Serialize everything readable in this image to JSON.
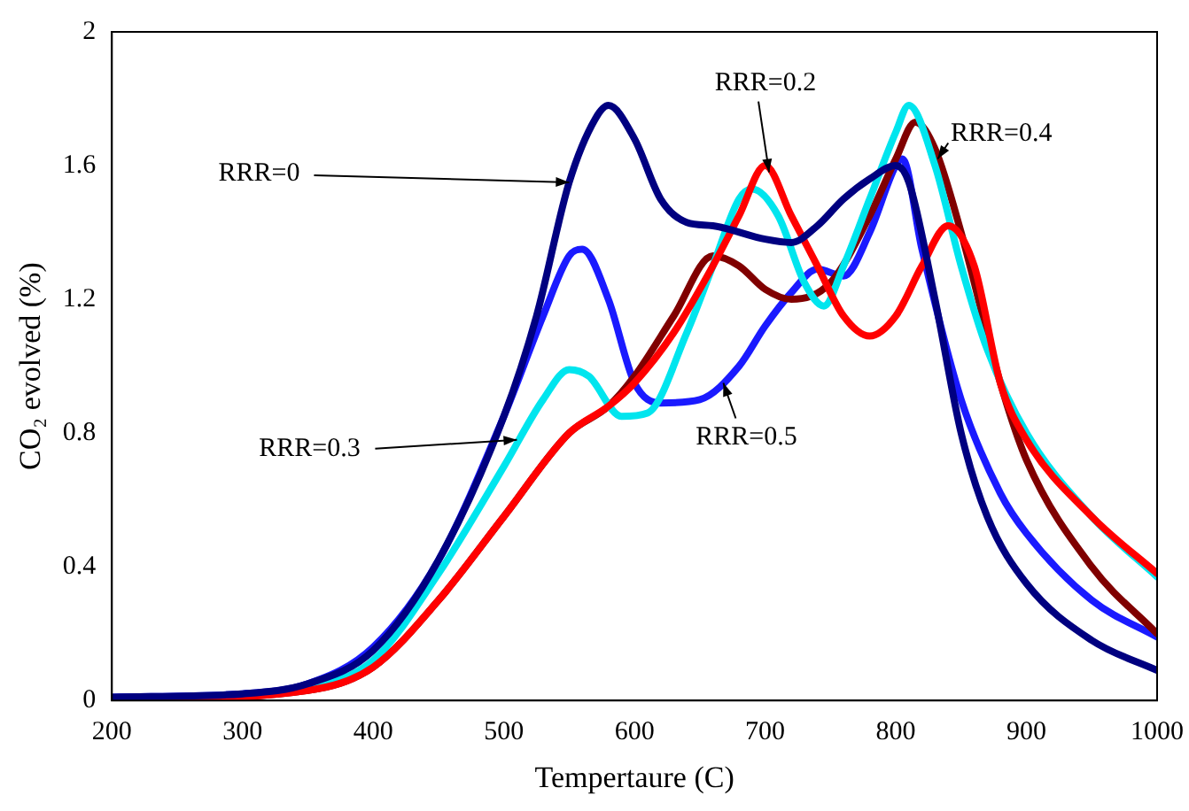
{
  "chart_data": {
    "type": "line",
    "xlabel": "Tempertaure (C)",
    "ylabel": "CO₂ evolved (%)",
    "xlim": [
      200,
      1000
    ],
    "xticks": [
      200,
      300,
      400,
      500,
      600,
      700,
      800,
      900,
      1000
    ],
    "ylim": [
      0,
      2
    ],
    "yticks": [
      0,
      0.4,
      0.8,
      1.2,
      1.6,
      2
    ],
    "grid": false,
    "legend": false,
    "marker": "none",
    "line_style": "solid",
    "series": [
      {
        "color": "#000080",
        "x": [
          200,
          300,
          350,
          400,
          450,
          500,
          525,
          550,
          570,
          580,
          600,
          620,
          640,
          660,
          700,
          720,
          740,
          760,
          780,
          800,
          810,
          830,
          850,
          870,
          900,
          950,
          1000
        ],
        "values": [
          0.01,
          0.02,
          0.05,
          0.15,
          0.42,
          0.85,
          1.15,
          1.55,
          1.74,
          1.78,
          1.68,
          1.5,
          1.43,
          1.42,
          1.38,
          1.37,
          1.42,
          1.5,
          1.56,
          1.6,
          1.55,
          1.2,
          0.8,
          0.55,
          0.35,
          0.18,
          0.09
        ]
      },
      {
        "color": "#ff0000",
        "x": [
          200,
          350,
          400,
          450,
          500,
          550,
          580,
          600,
          630,
          660,
          680,
          700,
          720,
          740,
          760,
          780,
          800,
          820,
          840,
          860,
          880,
          900,
          950,
          1000
        ],
        "values": [
          0,
          0.03,
          0.1,
          0.3,
          0.55,
          0.8,
          0.88,
          0.95,
          1.1,
          1.3,
          1.45,
          1.6,
          1.45,
          1.3,
          1.15,
          1.09,
          1.15,
          1.3,
          1.42,
          1.3,
          0.95,
          0.78,
          0.55,
          0.38
        ]
      },
      {
        "color": "#00e5ee",
        "x": [
          200,
          350,
          400,
          450,
          500,
          530,
          550,
          565,
          590,
          610,
          640,
          660,
          680,
          690,
          710,
          730,
          745,
          760,
          780,
          800,
          810,
          830,
          850,
          870,
          900,
          950,
          1000
        ],
        "values": [
          0,
          0.04,
          0.12,
          0.38,
          0.7,
          0.9,
          0.99,
          0.97,
          0.85,
          0.86,
          1.1,
          1.3,
          1.5,
          1.53,
          1.45,
          1.25,
          1.18,
          1.3,
          1.5,
          1.7,
          1.78,
          1.6,
          1.3,
          1.05,
          0.8,
          0.55,
          0.37
        ]
      },
      {
        "color": "#800000",
        "x": [
          200,
          350,
          400,
          450,
          500,
          550,
          580,
          600,
          630,
          660,
          680,
          700,
          720,
          750,
          780,
          800,
          815,
          830,
          850,
          880,
          900,
          950,
          1000
        ],
        "values": [
          0,
          0.03,
          0.1,
          0.3,
          0.55,
          0.8,
          0.88,
          0.97,
          1.15,
          1.33,
          1.3,
          1.23,
          1.2,
          1.25,
          1.45,
          1.62,
          1.73,
          1.65,
          1.4,
          0.95,
          0.72,
          0.4,
          0.2
        ]
      },
      {
        "color": "#1a1aff",
        "x": [
          200,
          300,
          350,
          400,
          450,
          500,
          530,
          550,
          560,
          580,
          600,
          620,
          650,
          680,
          700,
          720,
          740,
          760,
          780,
          800,
          805,
          820,
          850,
          880,
          900,
          950,
          1000
        ],
        "values": [
          0.01,
          0.02,
          0.05,
          0.16,
          0.42,
          0.85,
          1.15,
          1.33,
          1.35,
          1.2,
          0.95,
          0.89,
          0.9,
          1.0,
          1.12,
          1.22,
          1.29,
          1.27,
          1.4,
          1.6,
          1.62,
          1.35,
          0.9,
          0.62,
          0.5,
          0.3,
          0.19
        ]
      }
    ],
    "annotations": [
      {
        "text": "RRR=0",
        "x": 550,
        "y": 1.55
      },
      {
        "text": "RRR=0.2",
        "x": 703,
        "y": 1.58
      },
      {
        "text": "RRR=0.4",
        "x": 832,
        "y": 1.62
      },
      {
        "text": "RRR=0.3",
        "x": 510,
        "y": 0.78
      },
      {
        "text": "RRR=0.5",
        "x": 668,
        "y": 0.95
      }
    ]
  }
}
